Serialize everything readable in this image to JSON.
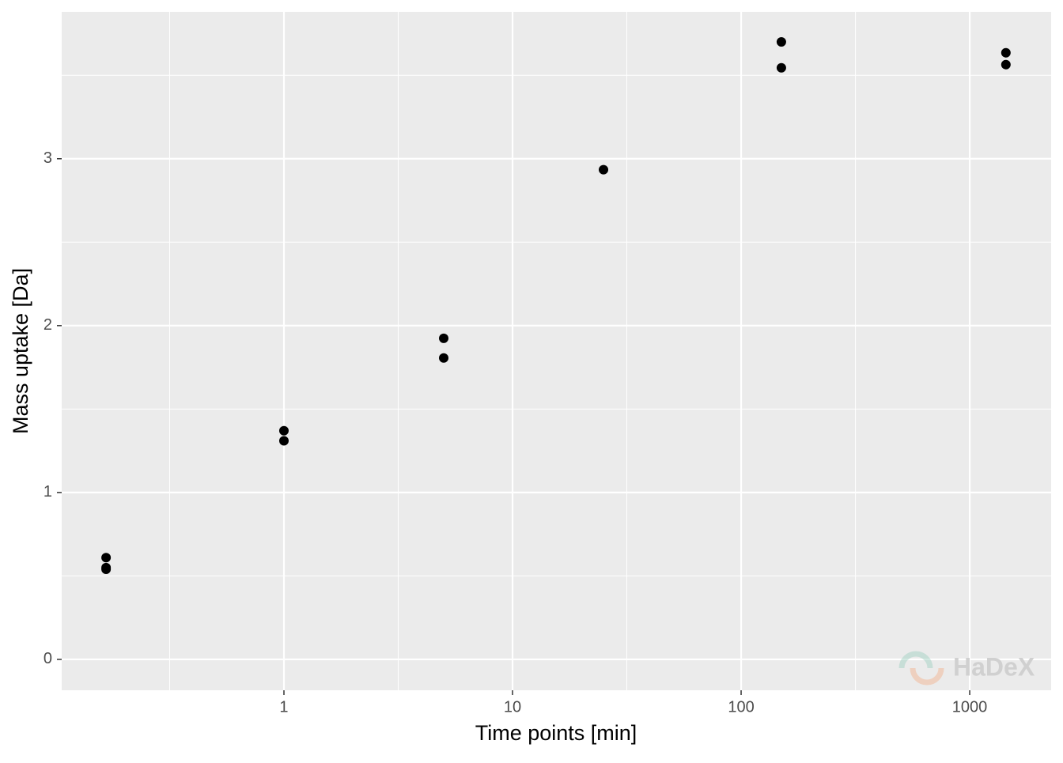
{
  "chart_data": {
    "type": "scatter",
    "x_label": "Time points [min]",
    "y_label": "Mass uptake [Da]",
    "x": [
      0.1667,
      0.1667,
      0.1667,
      1,
      1,
      5,
      5,
      25,
      150,
      150,
      1440,
      1440
    ],
    "values": [
      0.61,
      0.55,
      0.54,
      1.37,
      1.31,
      1.924,
      1.806,
      2.934,
      3.7,
      3.545,
      3.635,
      3.564
    ],
    "color": "#000000",
    "xlog": true,
    "xlim": [
      0.1066,
      2271
    ],
    "xticks": [
      1,
      10,
      100,
      1000
    ],
    "ylim": [
      -0.185,
      3.88
    ],
    "yticks": [
      0,
      1,
      2,
      3
    ],
    "grid": true,
    "watermark": "HaDeX"
  }
}
